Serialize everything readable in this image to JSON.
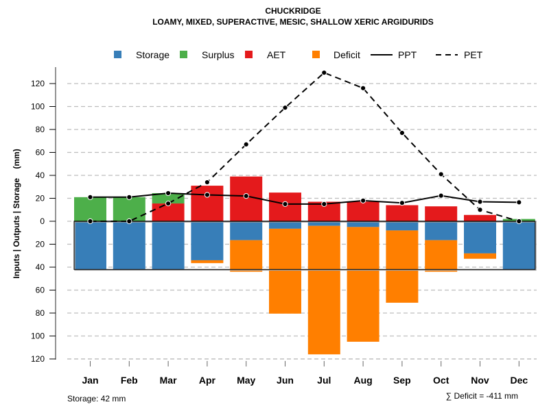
{
  "chart_data": {
    "type": "bar",
    "title": "CHUCKRIDGE",
    "subtitle": "LOAMY, MIXED, SUPERACTIVE, MESIC, SHALLOW XERIC ARGIDURIDS",
    "xlabel": "",
    "ylabel": "Inputs | Outputs | Storage    (mm)",
    "ylim": [
      -120,
      120
    ],
    "y_ticks": [
      120,
      100,
      80,
      60,
      40,
      20,
      0,
      -20,
      -40,
      -60,
      -80,
      -100,
      -120
    ],
    "y_tick_labels": [
      "120",
      "100",
      "80",
      "60",
      "40",
      "20",
      "0",
      "20",
      "40",
      "60",
      "80",
      "100",
      "120"
    ],
    "grid": true,
    "legend_position": "top",
    "categories": [
      "Jan",
      "Feb",
      "Mar",
      "Apr",
      "May",
      "Jun",
      "Jul",
      "Aug",
      "Sep",
      "Oct",
      "Nov",
      "Dec"
    ],
    "series": [
      {
        "name": "Storage",
        "kind": "bar-below",
        "color": "#377EB8",
        "values": [
          42,
          42,
          42,
          34,
          16.5,
          6.5,
          4,
          5,
          8,
          16.5,
          28,
          42
        ]
      },
      {
        "name": "Surplus",
        "kind": "bar-above",
        "color": "#4DAF4A",
        "values": [
          21,
          21,
          9,
          0,
          0,
          0,
          0,
          0,
          0,
          0,
          0,
          2
        ]
      },
      {
        "name": "AET",
        "kind": "bar-above",
        "color": "#E41A1C",
        "values": [
          0,
          0,
          15.5,
          31,
          39,
          25,
          17,
          17,
          14,
          13,
          5.5,
          0
        ]
      },
      {
        "name": "Deficit",
        "kind": "bar-below",
        "color": "#FF7F00",
        "values": [
          0,
          0,
          0,
          2.5,
          27.5,
          74,
          112,
          100,
          63,
          27.5,
          4.7,
          0
        ]
      },
      {
        "name": "PPT",
        "kind": "line-solid",
        "color": "#000000",
        "values": [
          21,
          21,
          24.5,
          23,
          22,
          15,
          15,
          18,
          16,
          22.3,
          17,
          16.5
        ]
      },
      {
        "name": "PET",
        "kind": "line-dashed",
        "color": "#000000",
        "values": [
          0,
          0,
          15.5,
          34,
          67,
          99,
          129.5,
          116,
          77,
          41,
          10,
          0
        ]
      }
    ],
    "storage_capacity": 42,
    "annotations": {
      "storage": "Storage: 42 mm",
      "deficit": "∑ Deficit = -411 mm"
    }
  },
  "legend": [
    {
      "label": "Storage",
      "symbol": "square",
      "color": "#377EB8"
    },
    {
      "label": "Surplus",
      "symbol": "square",
      "color": "#4DAF4A"
    },
    {
      "label": "AET",
      "symbol": "square",
      "color": "#E41A1C"
    },
    {
      "label": "Deficit",
      "symbol": "square",
      "color": "#FF7F00"
    },
    {
      "label": "PPT",
      "symbol": "solid-line",
      "color": "#000000"
    },
    {
      "label": "PET",
      "symbol": "dashed-line",
      "color": "#000000"
    }
  ]
}
